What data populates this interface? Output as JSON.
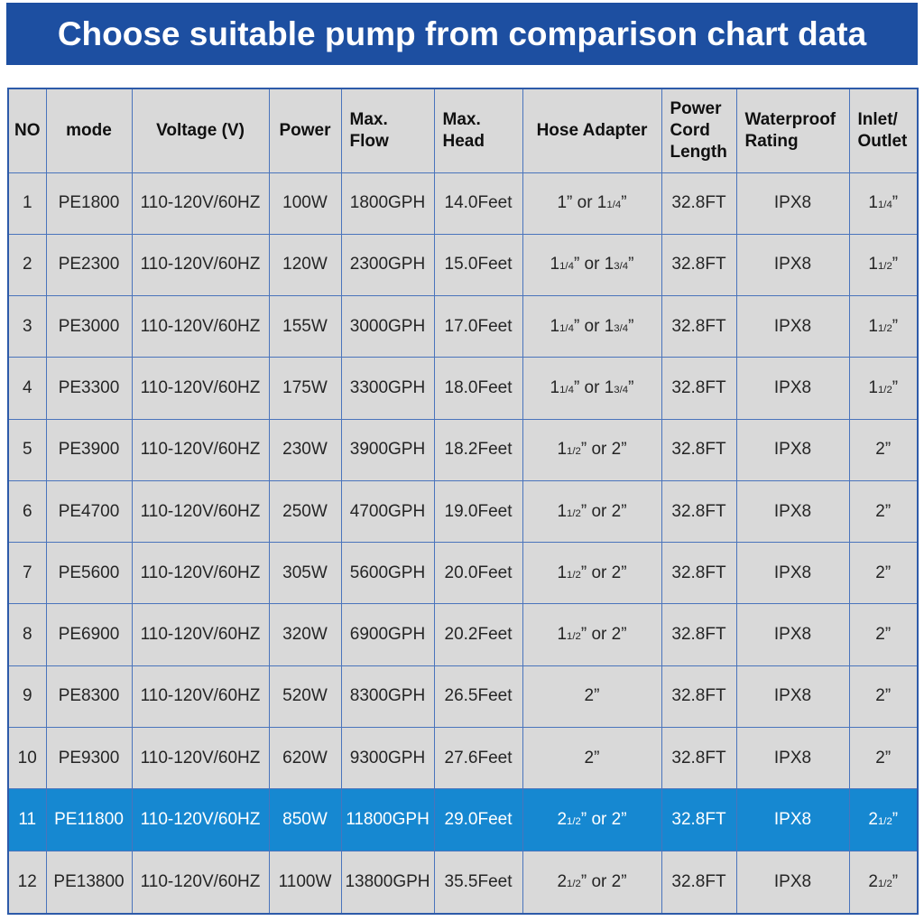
{
  "banner": {
    "title": "Choose suitable pump from comparison chart data"
  },
  "colors": {
    "banner_bg": "#1d4fa1",
    "banner_text": "#ffffff",
    "highlight_row_bg": "#1688d1",
    "highlight_row_text": "#ffffff",
    "cell_bg": "#d9d9d9",
    "border": "#4a74bc",
    "outer_border": "#2d5aa9",
    "text": "#252525"
  },
  "chart_data": {
    "type": "table",
    "title": "Choose suitable pump from comparison chart data",
    "columns": [
      "NO",
      "mode",
      "Voltage (V)",
      "Power",
      "Max.\nFlow",
      "Max.\nHead",
      "Hose Adapter",
      "Power\nCord\nLength",
      "Waterproof\nRating",
      "Inlet/\nOutlet"
    ],
    "column_keys": [
      "no",
      "mode",
      "voltage",
      "power",
      "max-flow",
      "max-head",
      "hose-adapter",
      "power-cord-length",
      "waterproof-rating",
      "inlet-outlet"
    ],
    "rows": [
      [
        "1",
        "PE1800",
        "110-120V/60HZ",
        "100W",
        "1800GPH",
        "14.0Feet",
        "1” or 1{1/4}”",
        "32.8FT",
        "IPX8",
        "1{1/4}”"
      ],
      [
        "2",
        "PE2300",
        "110-120V/60HZ",
        "120W",
        "2300GPH",
        "15.0Feet",
        "1{1/4}” or 1{3/4}”",
        "32.8FT",
        "IPX8",
        "1{1/2}”"
      ],
      [
        "3",
        "PE3000",
        "110-120V/60HZ",
        "155W",
        "3000GPH",
        "17.0Feet",
        "1{1/4}” or 1{3/4}”",
        "32.8FT",
        "IPX8",
        "1{1/2}”"
      ],
      [
        "4",
        "PE3300",
        "110-120V/60HZ",
        "175W",
        "3300GPH",
        "18.0Feet",
        "1{1/4}” or 1{3/4}”",
        "32.8FT",
        "IPX8",
        "1{1/2}”"
      ],
      [
        "5",
        "PE3900",
        "110-120V/60HZ",
        "230W",
        "3900GPH",
        "18.2Feet",
        "1{1/2}” or 2”",
        "32.8FT",
        "IPX8",
        "2”"
      ],
      [
        "6",
        "PE4700",
        "110-120V/60HZ",
        "250W",
        "4700GPH",
        "19.0Feet",
        "1{1/2}” or 2”",
        "32.8FT",
        "IPX8",
        "2”"
      ],
      [
        "7",
        "PE5600",
        "110-120V/60HZ",
        "305W",
        "5600GPH",
        "20.0Feet",
        "1{1/2}” or 2”",
        "32.8FT",
        "IPX8",
        "2”"
      ],
      [
        "8",
        "PE6900",
        "110-120V/60HZ",
        "320W",
        "6900GPH",
        "20.2Feet",
        "1{1/2}” or 2”",
        "32.8FT",
        "IPX8",
        "2”"
      ],
      [
        "9",
        "PE8300",
        "110-120V/60HZ",
        "520W",
        "8300GPH",
        "26.5Feet",
        "2”",
        "32.8FT",
        "IPX8",
        "2”"
      ],
      [
        "10",
        "PE9300",
        "110-120V/60HZ",
        "620W",
        "9300GPH",
        "27.6Feet",
        "2”",
        "32.8FT",
        "IPX8",
        "2”"
      ],
      [
        "11",
        "PE11800",
        "110-120V/60HZ",
        "850W",
        "11800GPH",
        "29.0Feet",
        "2{1/2}” or 2”",
        "32.8FT",
        "IPX8",
        "2{1/2}”"
      ],
      [
        "12",
        "PE13800",
        "110-120V/60HZ",
        "1100W",
        "13800GPH",
        "35.5Feet",
        "2{1/2}” or 2”",
        "32.8FT",
        "IPX8",
        "2{1/2}”"
      ]
    ],
    "highlighted_row_index": 10,
    "layout": {
      "grid": "on",
      "header_row": true,
      "highlight_note": "row 11 (PE11800) shown with blue background and white text"
    }
  }
}
